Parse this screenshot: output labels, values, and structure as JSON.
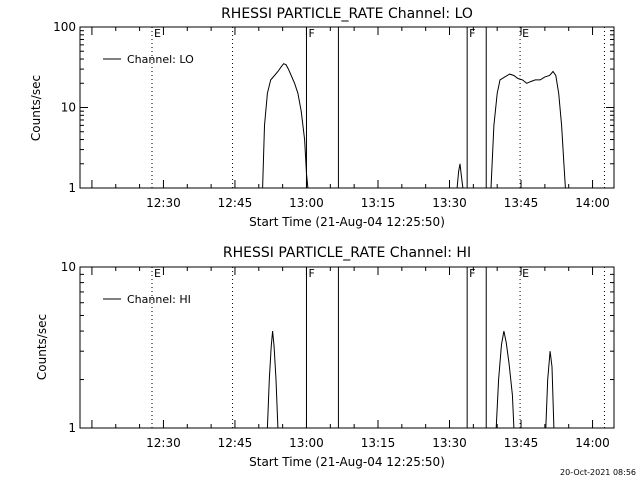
{
  "footer": {
    "timestamp": "20-Oct-2021 08:56"
  },
  "chart_data": [
    {
      "type": "line",
      "title": "RHESSI PARTICLE_RATE Channel: LO",
      "xlabel": "Start Time (21-Aug-04 12:25:50)",
      "ylabel": "Counts/sec",
      "yscale": "log",
      "xlim_minutes": [
        12.5,
        124.5
      ],
      "ylim": [
        1,
        100
      ],
      "xticks": [
        {
          "m": 30,
          "label": "12:30"
        },
        {
          "m": 45,
          "label": "12:45"
        },
        {
          "m": 60,
          "label": "13:00"
        },
        {
          "m": 75,
          "label": "13:15"
        },
        {
          "m": 90,
          "label": "13:30"
        },
        {
          "m": 105,
          "label": "13:45"
        },
        {
          "m": 120,
          "label": "14:00"
        }
      ],
      "yticks": [
        {
          "v": 1,
          "label": "1"
        },
        {
          "v": 10,
          "label": "10"
        },
        {
          "v": 100,
          "label": "100"
        }
      ],
      "legend": {
        "label": "Channel: LO",
        "position": "top-left"
      },
      "markers": [
        {
          "m": 27.6,
          "label": "E",
          "style": "dotted"
        },
        {
          "m": 44.5,
          "label": "",
          "style": "dotted"
        },
        {
          "m": 60.0,
          "label": "F",
          "style": "solid"
        },
        {
          "m": 66.7,
          "label": "",
          "style": "solid"
        },
        {
          "m": 93.7,
          "label": "F",
          "style": "solid"
        },
        {
          "m": 97.7,
          "label": "",
          "style": "solid"
        },
        {
          "m": 104.8,
          "label": "E",
          "style": "dotted"
        },
        {
          "m": 122.5,
          "label": "",
          "style": "dotted"
        }
      ],
      "segments": [
        [
          [
            50.8,
            1
          ],
          [
            51.2,
            6
          ],
          [
            51.8,
            15
          ],
          [
            52.5,
            22
          ],
          [
            53.3,
            25
          ],
          [
            54.0,
            28
          ],
          [
            54.7,
            32
          ],
          [
            55.2,
            35
          ],
          [
            55.7,
            34
          ],
          [
            56.2,
            30
          ],
          [
            56.8,
            25
          ],
          [
            57.5,
            20
          ],
          [
            58.2,
            15
          ],
          [
            58.9,
            9
          ],
          [
            59.6,
            4
          ],
          [
            60.0,
            1.5
          ],
          [
            60.3,
            1
          ]
        ],
        [
          [
            91.6,
            1
          ],
          [
            91.9,
            1.6
          ],
          [
            92.2,
            2
          ],
          [
            92.5,
            1.4
          ],
          [
            92.8,
            1
          ]
        ],
        [
          [
            98.7,
            1
          ],
          [
            99.3,
            6
          ],
          [
            100.0,
            15
          ],
          [
            100.6,
            22
          ],
          [
            101.6,
            24
          ],
          [
            102.6,
            26
          ],
          [
            103.5,
            25
          ],
          [
            104.3,
            23
          ],
          [
            105.3,
            22
          ],
          [
            106.2,
            20
          ],
          [
            107.0,
            21
          ],
          [
            108.0,
            22
          ],
          [
            109.0,
            22
          ],
          [
            110.0,
            24
          ],
          [
            111.0,
            25
          ],
          [
            111.7,
            28
          ],
          [
            112.3,
            25
          ],
          [
            112.9,
            15
          ],
          [
            113.5,
            6
          ],
          [
            114.0,
            2
          ],
          [
            114.3,
            1
          ]
        ]
      ]
    },
    {
      "type": "line",
      "title": "RHESSI PARTICLE_RATE Channel: HI",
      "xlabel": "Start Time (21-Aug-04 12:25:50)",
      "ylabel": "Counts/sec",
      "yscale": "log",
      "xlim_minutes": [
        12.5,
        124.5
      ],
      "ylim": [
        1,
        10
      ],
      "xticks": [
        {
          "m": 30,
          "label": "12:30"
        },
        {
          "m": 45,
          "label": "12:45"
        },
        {
          "m": 60,
          "label": "13:00"
        },
        {
          "m": 75,
          "label": "13:15"
        },
        {
          "m": 90,
          "label": "13:30"
        },
        {
          "m": 105,
          "label": "13:45"
        },
        {
          "m": 120,
          "label": "14:00"
        }
      ],
      "yticks": [
        {
          "v": 1,
          "label": "1"
        },
        {
          "v": 10,
          "label": "10"
        }
      ],
      "legend": {
        "label": "Channel: HI",
        "position": "top-left"
      },
      "markers": [
        {
          "m": 27.6,
          "label": "E",
          "style": "dotted"
        },
        {
          "m": 44.5,
          "label": "",
          "style": "dotted"
        },
        {
          "m": 60.0,
          "label": "F",
          "style": "solid"
        },
        {
          "m": 66.7,
          "label": "",
          "style": "solid"
        },
        {
          "m": 93.7,
          "label": "F",
          "style": "solid"
        },
        {
          "m": 97.7,
          "label": "",
          "style": "solid"
        },
        {
          "m": 104.8,
          "label": "E",
          "style": "dotted"
        },
        {
          "m": 122.5,
          "label": "",
          "style": "dotted"
        }
      ],
      "segments": [
        [
          [
            51.8,
            1
          ],
          [
            52.2,
            2
          ],
          [
            52.6,
            3.2
          ],
          [
            52.9,
            4.0
          ],
          [
            53.2,
            3.2
          ],
          [
            53.6,
            2
          ],
          [
            54.0,
            1
          ]
        ],
        [
          [
            99.8,
            1
          ],
          [
            100.3,
            2
          ],
          [
            100.9,
            3.3
          ],
          [
            101.4,
            4.0
          ],
          [
            101.9,
            3.4
          ],
          [
            102.5,
            2.5
          ],
          [
            103.2,
            1.6
          ],
          [
            103.5,
            1
          ]
        ],
        [
          [
            110.2,
            1
          ],
          [
            110.6,
            2
          ],
          [
            111.1,
            3.0
          ],
          [
            111.5,
            2.4
          ],
          [
            111.9,
            1
          ]
        ]
      ]
    }
  ]
}
